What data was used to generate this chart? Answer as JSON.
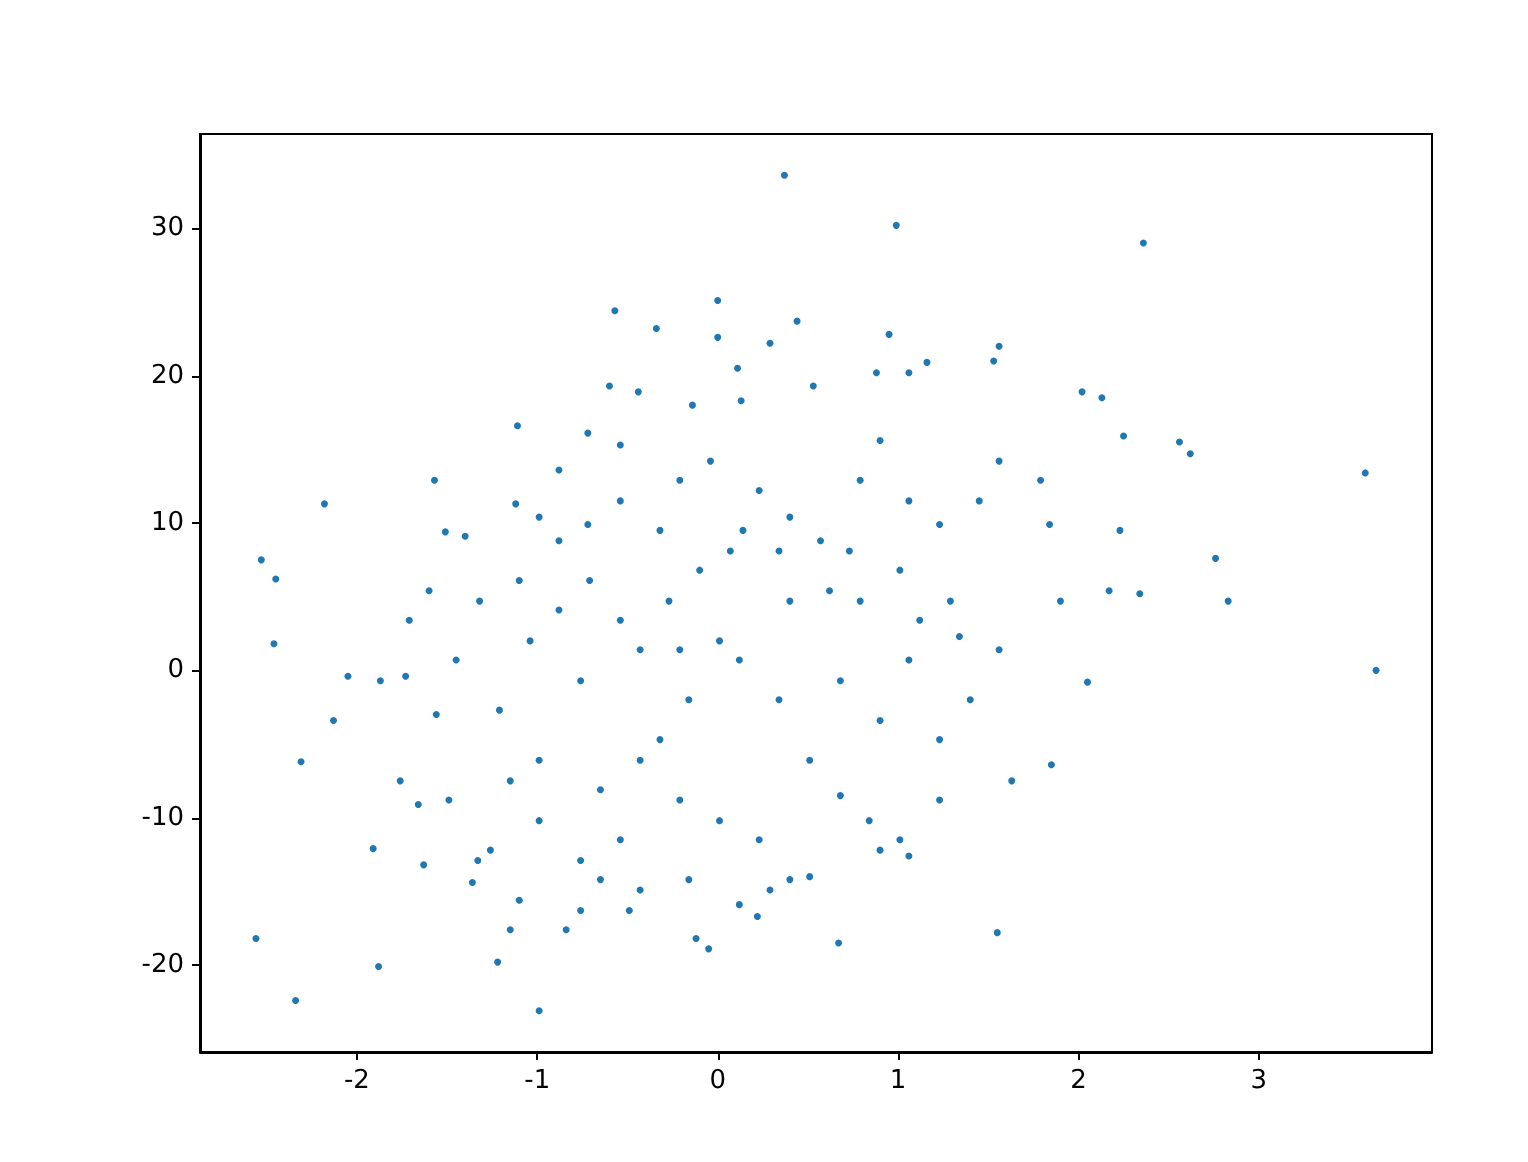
{
  "chart_data": {
    "type": "scatter",
    "color": "#1f77b4",
    "marker": "circle",
    "grid": false,
    "xlim": [
      -2.87,
      3.96
    ],
    "ylim": [
      -25.9,
      36.4
    ],
    "xticks": [
      -2,
      -1,
      0,
      1,
      2,
      3
    ],
    "yticks": [
      -20,
      -10,
      0,
      10,
      20,
      30
    ],
    "x": [
      0.37,
      0.99,
      2.36,
      0.0,
      -0.57,
      0.44,
      -0.34,
      0.95,
      0.0,
      0.29,
      1.56,
      1.53,
      1.16,
      1.06,
      0.11,
      0.88,
      0.53,
      -0.6,
      -0.44,
      2.02,
      2.13,
      -0.14,
      0.13,
      2.25,
      2.56,
      2.62,
      3.59,
      -1.11,
      -0.72,
      -0.54,
      -1.57,
      -2.18,
      2.76,
      2.83,
      3.65,
      -2.53,
      -2.45,
      -2.46,
      -2.56,
      -2.34,
      -1.88,
      -0.99,
      -2.31,
      -1.91,
      -2.13,
      -2.05,
      -1.22,
      -0.84,
      -0.12,
      -0.05,
      0.22,
      0.67,
      1.55,
      1.85,
      2.05,
      1.63,
      -1.36,
      -1.33,
      -1.63,
      -1.66,
      -1.56,
      -1.51,
      -1.4,
      -1.12,
      -0.99,
      -0.72,
      -0.88,
      -0.71,
      -1.32,
      -1.45,
      -1.73,
      -1.04,
      -1.21,
      -0.76,
      -0.99,
      -0.65,
      -0.43,
      -0.27,
      -0.1,
      0.14,
      0.23,
      0.4,
      0.57,
      0.79,
      0.9,
      1.06,
      1.23,
      1.45,
      1.56,
      1.79,
      1.84,
      2.23,
      2.17,
      2.34,
      1.9,
      1.56,
      1.4,
      1.23,
      1.06,
      0.9,
      0.68,
      0.51,
      0.34,
      0.12,
      0.01,
      -0.16,
      -0.32,
      -0.21,
      0.01,
      0.23,
      0.4,
      0.51,
      0.84,
      1.01,
      1.06,
      0.9,
      -0.54,
      -0.76,
      -0.99,
      -1.15,
      -1.26,
      -0.43,
      -0.16,
      -0.76,
      -0.49,
      0.12,
      0.29,
      -1.76,
      -1.49,
      -1.87,
      -1.71,
      -1.6,
      -1.1,
      -0.88,
      -0.54,
      -0.43,
      -0.21,
      0.4,
      0.62,
      0.79,
      1.01,
      1.29,
      1.34,
      1.12,
      0.73,
      0.34,
      0.07,
      -0.32,
      -0.54,
      -0.21,
      -0.04,
      -0.88,
      -0.65,
      -1.1,
      -1.15,
      0.68,
      1.23
    ],
    "values": [
      33.6,
      30.2,
      29.0,
      25.1,
      24.4,
      23.7,
      23.2,
      22.8,
      22.6,
      22.2,
      22.0,
      21.0,
      20.9,
      20.2,
      20.5,
      20.2,
      19.3,
      19.3,
      18.9,
      18.9,
      18.5,
      18.0,
      18.3,
      15.9,
      15.5,
      14.7,
      13.4,
      16.6,
      16.1,
      15.3,
      12.9,
      11.3,
      7.6,
      4.7,
      0.0,
      7.5,
      6.2,
      1.8,
      -18.2,
      -22.4,
      -20.1,
      -23.1,
      -6.2,
      -12.1,
      -3.4,
      -0.4,
      -19.8,
      -17.6,
      -18.2,
      -18.9,
      -16.7,
      -18.5,
      -17.8,
      -6.4,
      -0.8,
      -7.5,
      -14.4,
      -12.9,
      -13.2,
      -9.1,
      -3.0,
      9.4,
      9.1,
      11.3,
      10.4,
      9.9,
      8.8,
      6.1,
      4.7,
      0.7,
      -0.4,
      2.0,
      -2.7,
      -0.7,
      -6.1,
      -8.1,
      -6.1,
      4.7,
      6.8,
      9.5,
      12.2,
      10.4,
      8.8,
      12.9,
      15.6,
      11.5,
      9.9,
      11.5,
      14.2,
      12.9,
      9.9,
      9.5,
      5.4,
      5.2,
      4.7,
      1.4,
      -2.0,
      -4.7,
      0.7,
      -3.4,
      -0.7,
      -6.1,
      -2.0,
      0.7,
      2.0,
      -2.0,
      -4.7,
      -8.8,
      -10.2,
      -11.5,
      -14.2,
      -14.0,
      -10.2,
      -11.5,
      -12.6,
      -12.2,
      -11.5,
      -12.9,
      -10.2,
      -7.5,
      -12.2,
      -14.9,
      -14.2,
      -16.3,
      -16.3,
      -15.9,
      -14.9,
      -7.5,
      -8.8,
      -0.7,
      3.4,
      5.4,
      6.1,
      4.1,
      3.4,
      1.4,
      1.4,
      4.7,
      5.4,
      4.7,
      6.8,
      4.7,
      2.3,
      3.4,
      8.1,
      8.1,
      8.1,
      9.5,
      11.5,
      12.9,
      14.2,
      13.6,
      -14.2,
      -15.6,
      -17.6,
      -8.5,
      -8.8
    ]
  }
}
